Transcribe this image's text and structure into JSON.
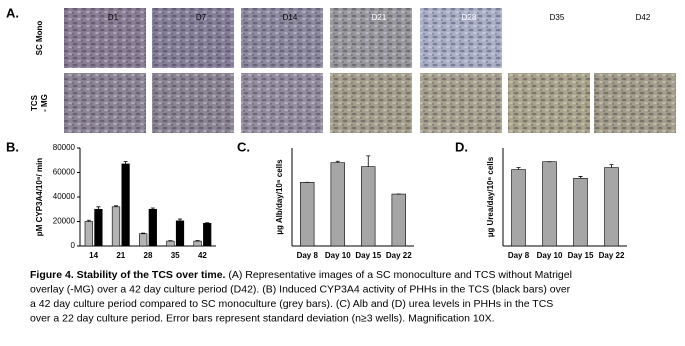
{
  "panels": [
    "A.",
    "B.",
    "C.",
    "D."
  ],
  "image_grid": {
    "row_labels": [
      [
        "SC Mono"
      ],
      [
        "TCS",
        "- MG"
      ]
    ],
    "columns": [
      "D1",
      "D7",
      "D14",
      "D21",
      "D28",
      "D35",
      "D42"
    ]
  },
  "chart_data": [
    {
      "type": "bar",
      "ylabel": "pM CYP3A4/10⁶/ min",
      "categories": [
        "14",
        "21",
        "28",
        "35",
        "42"
      ],
      "series": [
        {
          "color": "#b3b3b3",
          "values": [
            20000,
            32000,
            10000,
            4000,
            4000
          ],
          "errors": [
            1000,
            800,
            500,
            400,
            500
          ]
        },
        {
          "color": "#000000",
          "values": [
            30000,
            67000,
            30000,
            20500,
            18500
          ],
          "errors": [
            2000,
            2000,
            1000,
            1500,
            500
          ]
        }
      ],
      "ylim": [
        0,
        80000
      ],
      "yticks": [
        0,
        20000,
        40000,
        60000,
        80000
      ]
    },
    {
      "type": "bar",
      "ylabel": "µg Alb/day/10⁶ cells",
      "categories": [
        "Day 8",
        "Day 10",
        "Day 15",
        "Day 22"
      ],
      "series": [
        {
          "color": "#a6a6a6",
          "values": [
            65,
            85,
            81,
            53
          ],
          "errors": [
            0,
            1.5,
            11,
            0
          ]
        }
      ],
      "ylim": [
        0,
        100
      ]
    },
    {
      "type": "bar",
      "ylabel": "µg Urea/day/10⁶ cells",
      "categories": [
        "Day 8",
        "Day 10",
        "Day 15",
        "Day 22"
      ],
      "series": [
        {
          "color": "#a6a6a6",
          "values": [
            78,
            86,
            69,
            80
          ],
          "errors": [
            2,
            0,
            2,
            3
          ]
        }
      ],
      "ylim": [
        0,
        100
      ]
    }
  ],
  "caption": {
    "title": "Figure 4. Stability of the TCS over time.",
    "lines": [
      " (A) Representative images of a SC monoculture and TCS without Matrigel",
      "overlay (-MG) over a 42 day culture period (D42). (B) Induced CYP3A4 activity of PHHs in the TCS (black bars) over",
      "a 42 day culture period compared to SC monoculture (grey bars). (C) Alb and (D) urea levels in PHHs in the TCS",
      "over a 22 day culture period. Error bars represent standard deviation (n≥3 wells). Magnification 10X."
    ]
  }
}
